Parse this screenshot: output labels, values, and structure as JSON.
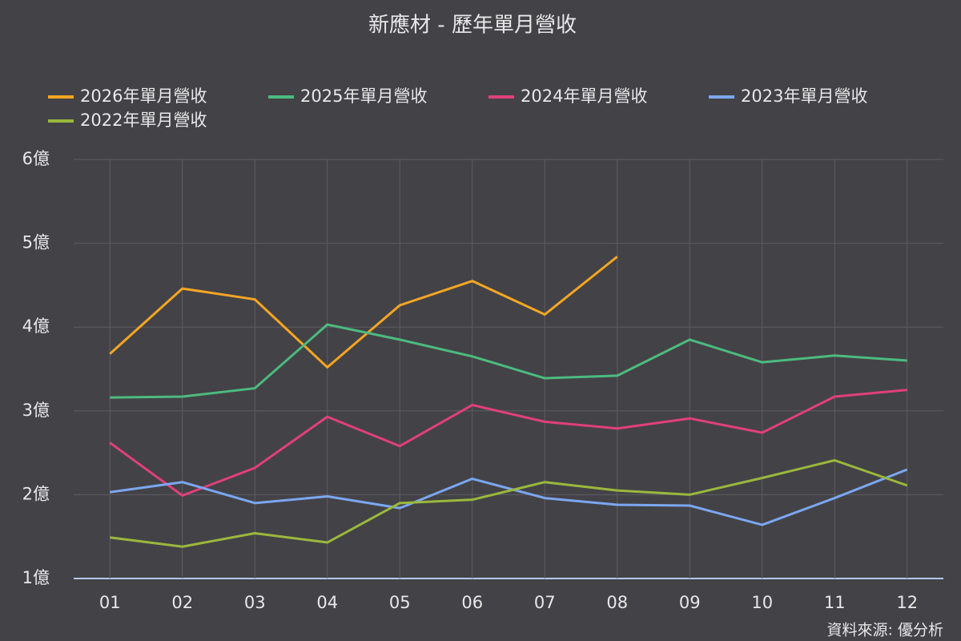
{
  "chart_data": {
    "type": "line",
    "title": "新應材 - 歷年單月營收",
    "categories": [
      "01",
      "02",
      "03",
      "04",
      "05",
      "06",
      "07",
      "08",
      "09",
      "10",
      "11",
      "12"
    ],
    "series": [
      {
        "name": "2026年單月營收",
        "color": "#f5a623",
        "values": [
          3.68,
          4.46,
          4.33,
          3.52,
          4.26,
          4.55,
          4.15,
          4.84,
          null,
          null,
          null,
          null
        ]
      },
      {
        "name": "2025年單月營收",
        "color": "#4cbb7f",
        "values": [
          3.16,
          3.17,
          3.27,
          4.03,
          3.85,
          3.65,
          3.39,
          3.42,
          3.85,
          3.58,
          3.66,
          3.6
        ]
      },
      {
        "name": "2024年單月營收",
        "color": "#e0407a",
        "values": [
          2.62,
          1.99,
          2.32,
          2.93,
          2.58,
          3.07,
          2.87,
          2.79,
          2.91,
          2.74,
          3.17,
          3.25
        ]
      },
      {
        "name": "2023年單月營收",
        "color": "#7ba7f0",
        "values": [
          2.03,
          2.15,
          1.9,
          1.98,
          1.84,
          2.19,
          1.96,
          1.88,
          1.87,
          1.64,
          1.96,
          2.3
        ]
      },
      {
        "name": "2022年單月營收",
        "color": "#9ab83c",
        "values": [
          1.49,
          1.38,
          1.54,
          1.43,
          1.9,
          1.94,
          2.15,
          2.05,
          2.0,
          2.2,
          2.41,
          2.11
        ]
      }
    ],
    "ylim": [
      1,
      6
    ],
    "yticks": [
      {
        "value": 1,
        "label": "1億"
      },
      {
        "value": 2,
        "label": "2億"
      },
      {
        "value": 3,
        "label": "3億"
      },
      {
        "value": 4,
        "label": "4億"
      },
      {
        "value": 5,
        "label": "5億"
      },
      {
        "value": 6,
        "label": "6億"
      }
    ],
    "grid": true,
    "source": "資料來源: 優分析"
  }
}
